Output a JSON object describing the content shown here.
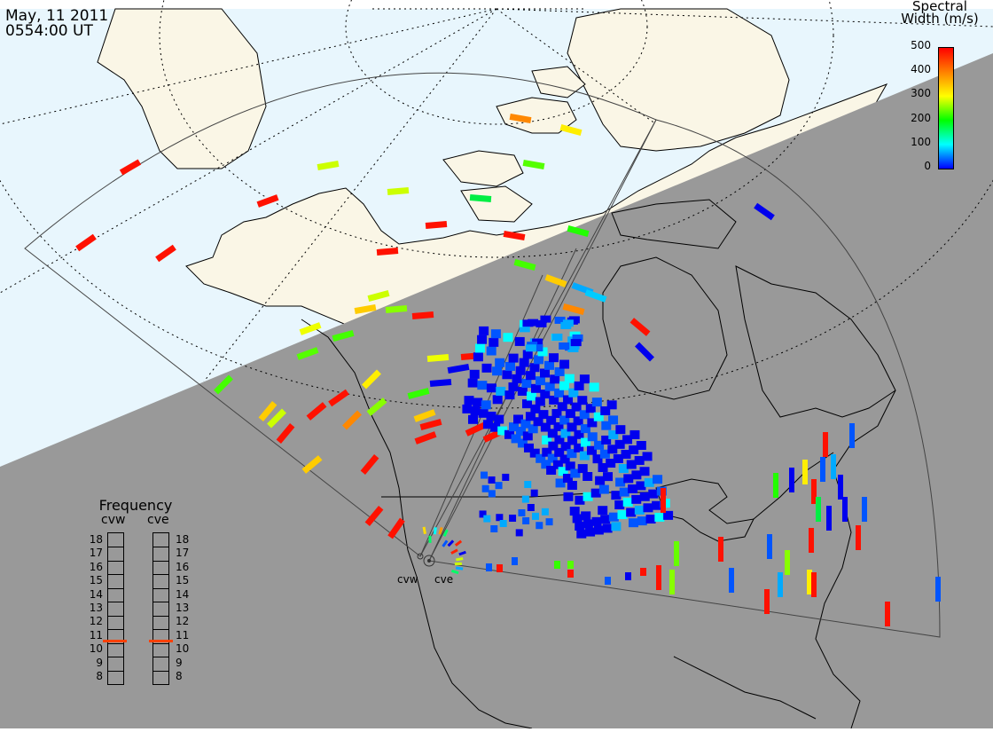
{
  "header": {
    "date": "May, 11 2011",
    "time": "0554:00 UT"
  },
  "colorbar": {
    "title_line1": "Spectral",
    "title_line2": "Width (m/s)",
    "ticks": [
      "500",
      "400",
      "300",
      "200",
      "100",
      "0"
    ],
    "stops": [
      "#0000ff",
      "#00ffff",
      "#00ff00",
      "#ffff00",
      "#ff8000",
      "#ff0000"
    ]
  },
  "radars": [
    {
      "code": "cvw"
    },
    {
      "code": "cve"
    }
  ],
  "frequency_panel": {
    "title": "Frequency",
    "left_label": "cvw",
    "right_label": "cve",
    "ticks": [
      "18",
      "17",
      "16",
      "15",
      "14",
      "13",
      "12",
      "11",
      "10",
      "9",
      "8"
    ],
    "tick_values": [
      18,
      17,
      16,
      15,
      14,
      13,
      12,
      11,
      10,
      9,
      8
    ],
    "cvw_mhz": 10.6,
    "cve_mhz": 10.6,
    "marker_color": "#ff4000"
  },
  "colors": {
    "night": "#999999",
    "day_ocean": "#e8f6fd",
    "day_land": "#faf6e6"
  }
}
